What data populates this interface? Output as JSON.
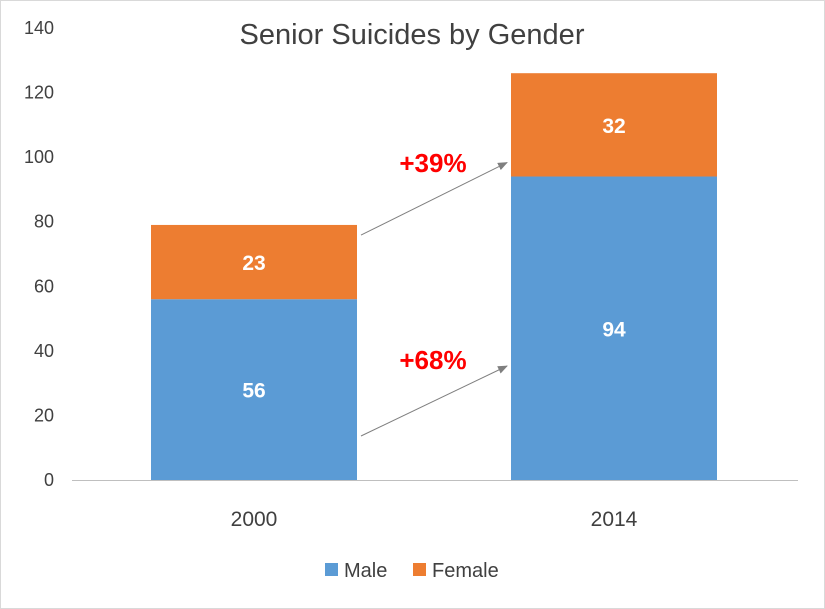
{
  "chart_data": {
    "type": "bar",
    "stacked": true,
    "title": "Senior Suicides by Gender",
    "xlabel": "",
    "ylabel": "",
    "categories": [
      "2000",
      "2014"
    ],
    "series": [
      {
        "name": "Male",
        "values": [
          56,
          94
        ],
        "color": "#5b9bd5"
      },
      {
        "name": "Female",
        "values": [
          23,
          32
        ],
        "color": "#ed7d31"
      }
    ],
    "ylim": [
      0,
      140
    ],
    "yticks": [
      0,
      20,
      40,
      60,
      80,
      100,
      120,
      140
    ],
    "grid": false,
    "legend": "bottom",
    "annotations": [
      {
        "text": "+68%",
        "series": "Male",
        "color": "#ff0000"
      },
      {
        "text": "+39%",
        "series": "Female",
        "color": "#ff0000"
      }
    ]
  }
}
